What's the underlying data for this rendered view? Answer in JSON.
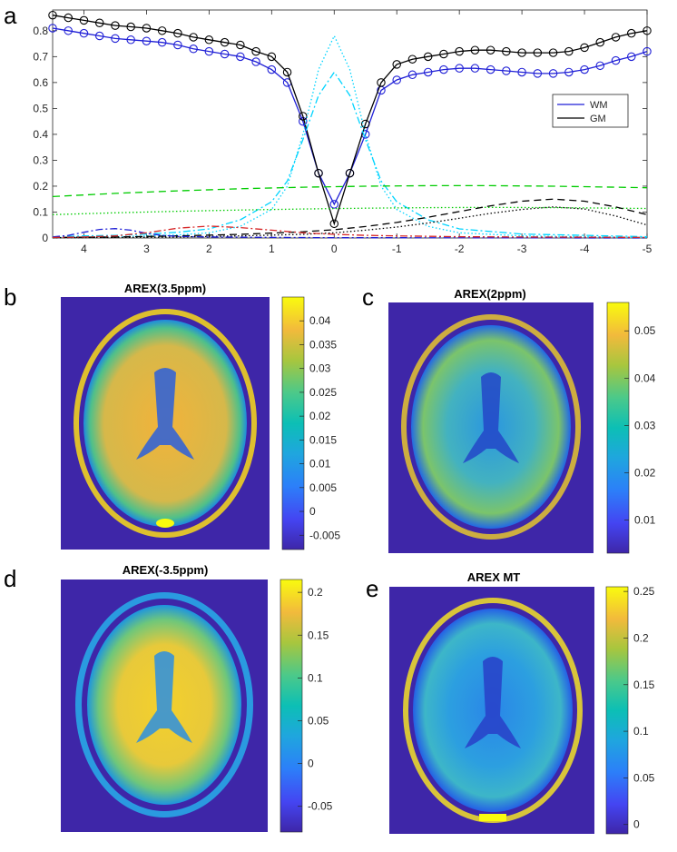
{
  "panel_labels": [
    "a",
    "b",
    "c",
    "d",
    "e"
  ],
  "colors": {
    "wm": "#1f1fd6",
    "gm": "#000000",
    "amide": "#1f1fd6",
    "amine": "#d62728",
    "water": "#00d4ff",
    "mt": "#00cc00",
    "noe": "#000000",
    "map_low": "#3e26a8",
    "map_high": "#f9fb0e"
  },
  "chart_data": [
    {
      "type": "line",
      "panel": "a",
      "title": "",
      "xlabel": "",
      "ylabel": "",
      "xlim": [
        4.5,
        -5
      ],
      "x_reversed": true,
      "ylim": [
        0,
        0.88
      ],
      "x_ticks": [
        "4",
        "3",
        "2",
        "1",
        "0",
        "-1",
        "-2",
        "-3",
        "-4",
        "-5"
      ],
      "y_ticks": [
        "0",
        "0.1",
        "0.2",
        "0.3",
        "0.4",
        "0.5",
        "0.6",
        "0.7",
        "0.8"
      ],
      "legend": {
        "position": "inside-right",
        "entries": [
          "WM",
          "GM"
        ]
      },
      "series": [
        {
          "name": "WM",
          "style": "line-with-circles",
          "color": "#1f1fd6",
          "x": [
            4.5,
            4.25,
            4.0,
            3.75,
            3.5,
            3.25,
            3.0,
            2.75,
            2.5,
            2.25,
            2.0,
            1.75,
            1.5,
            1.25,
            1.0,
            0.75,
            0.5,
            0.25,
            0.0,
            -0.25,
            -0.5,
            -0.75,
            -1.0,
            -1.25,
            -1.5,
            -1.75,
            -2.0,
            -2.25,
            -2.5,
            -2.75,
            -3.0,
            -3.25,
            -3.5,
            -3.75,
            -4.0,
            -4.25,
            -4.5,
            -4.75,
            -5.0
          ],
          "y": [
            0.81,
            0.8,
            0.79,
            0.78,
            0.77,
            0.765,
            0.76,
            0.755,
            0.745,
            0.73,
            0.72,
            0.71,
            0.7,
            0.68,
            0.65,
            0.6,
            0.45,
            0.25,
            0.13,
            0.25,
            0.4,
            0.57,
            0.61,
            0.63,
            0.64,
            0.65,
            0.655,
            0.655,
            0.65,
            0.645,
            0.64,
            0.635,
            0.635,
            0.64,
            0.65,
            0.665,
            0.685,
            0.7,
            0.72
          ]
        },
        {
          "name": "GM",
          "style": "line-with-circles",
          "color": "#000000",
          "x": [
            4.5,
            4.25,
            4.0,
            3.75,
            3.5,
            3.25,
            3.0,
            2.75,
            2.5,
            2.25,
            2.0,
            1.75,
            1.5,
            1.25,
            1.0,
            0.75,
            0.5,
            0.25,
            0.0,
            -0.25,
            -0.5,
            -0.75,
            -1.0,
            -1.25,
            -1.5,
            -1.75,
            -2.0,
            -2.25,
            -2.5,
            -2.75,
            -3.0,
            -3.25,
            -3.5,
            -3.75,
            -4.0,
            -4.25,
            -4.5,
            -4.75,
            -5.0
          ],
          "y": [
            0.86,
            0.85,
            0.84,
            0.83,
            0.82,
            0.815,
            0.81,
            0.8,
            0.79,
            0.775,
            0.765,
            0.755,
            0.745,
            0.72,
            0.7,
            0.64,
            0.47,
            0.25,
            0.055,
            0.25,
            0.44,
            0.6,
            0.67,
            0.69,
            0.7,
            0.71,
            0.72,
            0.725,
            0.725,
            0.72,
            0.715,
            0.715,
            0.715,
            0.72,
            0.735,
            0.755,
            0.775,
            0.79,
            0.8
          ]
        },
        {
          "name": "",
          "style": "dash-dot",
          "color": "#00d4ff",
          "x": [
            4.5,
            4.0,
            3.5,
            3.0,
            2.5,
            2.0,
            1.5,
            1.0,
            0.75,
            0.5,
            0.25,
            0.0,
            -0.25,
            -0.5,
            -0.75,
            -1.0,
            -1.5,
            -2.0,
            -3.0,
            -4.0,
            -5.0
          ],
          "y": [
            0.005,
            0.008,
            0.01,
            0.015,
            0.022,
            0.035,
            0.07,
            0.14,
            0.22,
            0.38,
            0.55,
            0.64,
            0.55,
            0.38,
            0.22,
            0.14,
            0.07,
            0.035,
            0.015,
            0.01,
            0.005
          ]
        },
        {
          "name": "",
          "style": "dotted",
          "color": "#00d4ff",
          "x": [
            4.5,
            4.0,
            3.5,
            3.0,
            2.5,
            2.0,
            1.5,
            1.0,
            0.75,
            0.5,
            0.25,
            0.0,
            -0.25,
            -0.5,
            -0.75,
            -1.0,
            -1.5,
            -2.0,
            -3.0,
            -4.0,
            -5.0
          ],
          "y": [
            0.002,
            0.003,
            0.005,
            0.008,
            0.012,
            0.02,
            0.045,
            0.11,
            0.2,
            0.4,
            0.65,
            0.78,
            0.65,
            0.4,
            0.2,
            0.11,
            0.045,
            0.02,
            0.008,
            0.005,
            0.002
          ]
        },
        {
          "name": "",
          "style": "dashed",
          "color": "#00cc00",
          "x": [
            4.5,
            3.5,
            2.5,
            1.5,
            0.5,
            -0.5,
            -1.5,
            -2.5,
            -3.5,
            -4.5,
            -5.0
          ],
          "y": [
            0.16,
            0.172,
            0.182,
            0.19,
            0.196,
            0.2,
            0.202,
            0.202,
            0.2,
            0.196,
            0.194
          ]
        },
        {
          "name": "",
          "style": "dotted",
          "color": "#00cc00",
          "x": [
            4.5,
            3.5,
            2.5,
            1.5,
            0.5,
            -0.5,
            -1.5,
            -2.5,
            -3.5,
            -4.5,
            -5.0
          ],
          "y": [
            0.09,
            0.097,
            0.103,
            0.108,
            0.112,
            0.115,
            0.117,
            0.118,
            0.117,
            0.115,
            0.114
          ]
        },
        {
          "name": "",
          "style": "dashed",
          "color": "#000000",
          "x": [
            4.5,
            3.5,
            2.5,
            1.5,
            0.5,
            0.0,
            -0.5,
            -1.0,
            -1.5,
            -2.0,
            -2.5,
            -3.0,
            -3.5,
            -4.0,
            -4.5,
            -5.0
          ],
          "y": [
            0.002,
            0.004,
            0.008,
            0.014,
            0.024,
            0.032,
            0.044,
            0.06,
            0.08,
            0.102,
            0.124,
            0.142,
            0.15,
            0.142,
            0.12,
            0.09
          ]
        },
        {
          "name": "",
          "style": "dotted",
          "color": "#000000",
          "x": [
            4.5,
            3.5,
            2.5,
            1.5,
            0.5,
            0.0,
            -0.5,
            -1.0,
            -1.5,
            -2.0,
            -2.5,
            -3.0,
            -3.5,
            -4.0,
            -4.5,
            -5.0
          ],
          "y": [
            0.001,
            0.002,
            0.004,
            0.008,
            0.014,
            0.02,
            0.03,
            0.042,
            0.058,
            0.076,
            0.095,
            0.11,
            0.12,
            0.112,
            0.085,
            0.05
          ]
        },
        {
          "name": "",
          "style": "dash-dot",
          "color": "#1f1fd6",
          "x": [
            4.5,
            4.25,
            4.0,
            3.75,
            3.5,
            3.25,
            3.0,
            2.75,
            2.5,
            2.0,
            1.5,
            1.0,
            0.0,
            -1.0,
            -5.0
          ],
          "y": [
            0.004,
            0.01,
            0.022,
            0.033,
            0.036,
            0.03,
            0.018,
            0.01,
            0.006,
            0.004,
            0.003,
            0.002,
            0.001,
            0.001,
            0.0
          ]
        },
        {
          "name": "",
          "style": "dash-dot",
          "color": "#d62728",
          "x": [
            4.5,
            4.0,
            3.5,
            3.0,
            2.5,
            2.0,
            1.5,
            1.0,
            0.5,
            0.0,
            -0.5,
            -1.0,
            -2.0,
            -3.0,
            -4.0,
            -5.0
          ],
          "y": [
            0.002,
            0.004,
            0.008,
            0.02,
            0.038,
            0.046,
            0.04,
            0.03,
            0.02,
            0.014,
            0.01,
            0.008,
            0.005,
            0.004,
            0.003,
            0.002
          ]
        }
      ]
    },
    {
      "type": "heatmap",
      "panel": "b",
      "title": "AREX(3.5ppm)",
      "colormap": "parula",
      "colorbar_ticks": [
        "-0.005",
        "0",
        "0.005",
        "0.01",
        "0.015",
        "0.02",
        "0.025",
        "0.03",
        "0.035",
        "0.04"
      ],
      "clim": [
        -0.008,
        0.045
      ]
    },
    {
      "type": "heatmap",
      "panel": "c",
      "title": "AREX(2ppm)",
      "colormap": "parula",
      "colorbar_ticks": [
        "0.01",
        "0.02",
        "0.03",
        "0.04",
        "0.05"
      ],
      "clim": [
        0.003,
        0.056
      ]
    },
    {
      "type": "heatmap",
      "panel": "d",
      "title": "AREX(-3.5ppm)",
      "colormap": "parula",
      "colorbar_ticks": [
        "-0.05",
        "0",
        "0.05",
        "0.1",
        "0.15",
        "0.2"
      ],
      "clim": [
        -0.08,
        0.215
      ]
    },
    {
      "type": "heatmap",
      "panel": "e",
      "title": "AREX MT",
      "colormap": "parula",
      "colorbar_ticks": [
        "0",
        "0.05",
        "0.1",
        "0.15",
        "0.2",
        "0.25"
      ],
      "clim": [
        -0.01,
        0.255
      ]
    }
  ]
}
